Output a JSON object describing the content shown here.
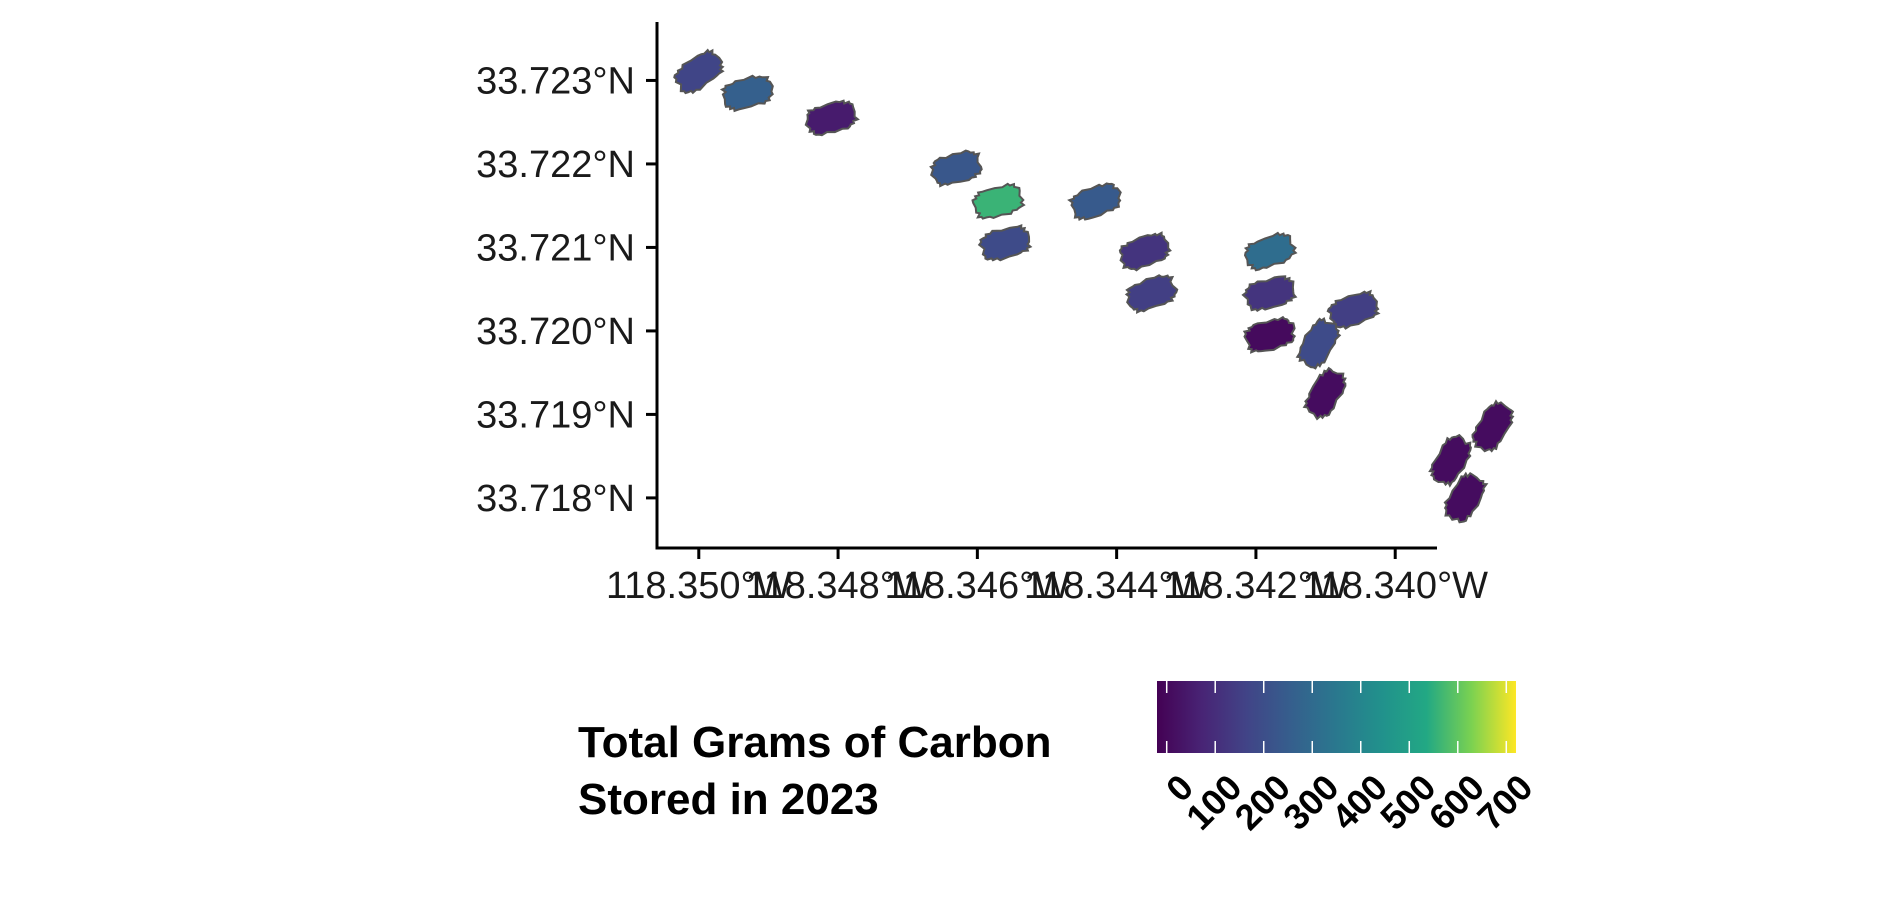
{
  "chart_data": {
    "type": "choropleth",
    "x_axis": {
      "ticks": [
        "118.350°W",
        "118.348°W",
        "118.346°W",
        "118.344°W",
        "118.342°W",
        "118.340°W"
      ],
      "tick_values": [
        -118.35,
        -118.348,
        -118.346,
        -118.344,
        -118.342,
        -118.34
      ],
      "range": [
        -118.3506,
        -118.3394
      ]
    },
    "y_axis": {
      "ticks": [
        "33.718°N",
        "33.719°N",
        "33.720°N",
        "33.721°N",
        "33.722°N",
        "33.723°N"
      ],
      "tick_values": [
        33.718,
        33.719,
        33.72,
        33.721,
        33.722,
        33.723
      ],
      "range": [
        33.7174,
        33.7237
      ]
    },
    "legend": {
      "title_lines": [
        "Total Grams of Carbon",
        "Stored in 2023"
      ],
      "breaks": [
        "0",
        "100",
        "200",
        "300",
        "400",
        "500",
        "600",
        "700"
      ],
      "break_values": [
        0,
        100,
        200,
        300,
        400,
        500,
        600,
        700
      ],
      "limits": [
        -20,
        720
      ],
      "palette": "viridis",
      "position": "bottom"
    },
    "outline_color": "#555555",
    "plots": [
      {
        "lon": -118.35,
        "lat": 33.7231,
        "value": 170,
        "angle": -35
      },
      {
        "lon": -118.3493,
        "lat": 33.72285,
        "value": 260,
        "angle": -15
      },
      {
        "lon": -118.3481,
        "lat": 33.72255,
        "value": 50,
        "angle": -15
      },
      {
        "lon": -118.3463,
        "lat": 33.72195,
        "value": 230,
        "angle": -15
      },
      {
        "lon": -118.3457,
        "lat": 33.72155,
        "value": 560,
        "angle": -15
      },
      {
        "lon": -118.3456,
        "lat": 33.72105,
        "value": 190,
        "angle": -15
      },
      {
        "lon": -118.3443,
        "lat": 33.72155,
        "value": 240,
        "angle": -20
      },
      {
        "lon": -118.3436,
        "lat": 33.72095,
        "value": 120,
        "angle": -20
      },
      {
        "lon": -118.3435,
        "lat": 33.72045,
        "value": 150,
        "angle": -20
      },
      {
        "lon": -118.3418,
        "lat": 33.72095,
        "value": 310,
        "angle": -20
      },
      {
        "lon": -118.3418,
        "lat": 33.72045,
        "value": 120,
        "angle": -15
      },
      {
        "lon": -118.3418,
        "lat": 33.71995,
        "value": 5,
        "angle": -15
      },
      {
        "lon": -118.3406,
        "lat": 33.72025,
        "value": 150,
        "angle": -20
      },
      {
        "lon": -118.3411,
        "lat": 33.71985,
        "value": 190,
        "angle": -60
      },
      {
        "lon": -118.341,
        "lat": 33.71925,
        "value": 10,
        "angle": -60
      },
      {
        "lon": -118.3386,
        "lat": 33.71885,
        "value": 10,
        "angle": -60
      },
      {
        "lon": -118.3392,
        "lat": 33.71845,
        "value": 10,
        "angle": -60
      },
      {
        "lon": -118.339,
        "lat": 33.718,
        "value": 10,
        "angle": -60
      }
    ]
  }
}
